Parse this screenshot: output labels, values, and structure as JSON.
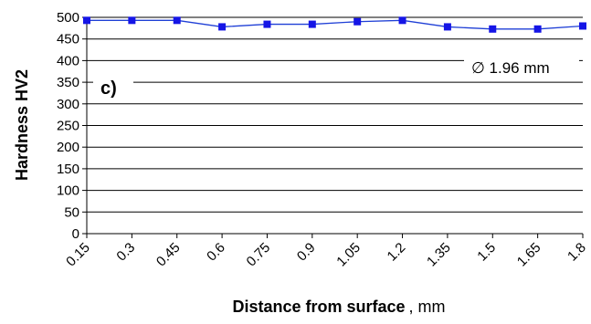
{
  "chart_data": {
    "type": "line",
    "x": [
      "0.15",
      "0.3",
      "0.45",
      "0.6",
      "0.75",
      "0.9",
      "1.05",
      "1.2",
      "1.35",
      "1.5",
      "1.65",
      "1.8"
    ],
    "series": [
      {
        "values": [
          493,
          493,
          493,
          478,
          484,
          484,
          490,
          493,
          478,
          473,
          473,
          480
        ]
      }
    ],
    "ylabel": "Hardness HV2",
    "xlabel": "Distance from surface",
    "xlabel_unit": ", mm",
    "ylim": [
      0,
      500
    ],
    "yticks": [
      "0",
      "50",
      "100",
      "150",
      "200",
      "250",
      "300",
      "350",
      "400",
      "450",
      "500"
    ],
    "grid": "horizontal",
    "panel_label": "c)",
    "annotation": "∅ 1.96 mm",
    "colors": {
      "series": "#1f3fd6",
      "marker": "#1515e6",
      "grid": "#000000"
    }
  }
}
